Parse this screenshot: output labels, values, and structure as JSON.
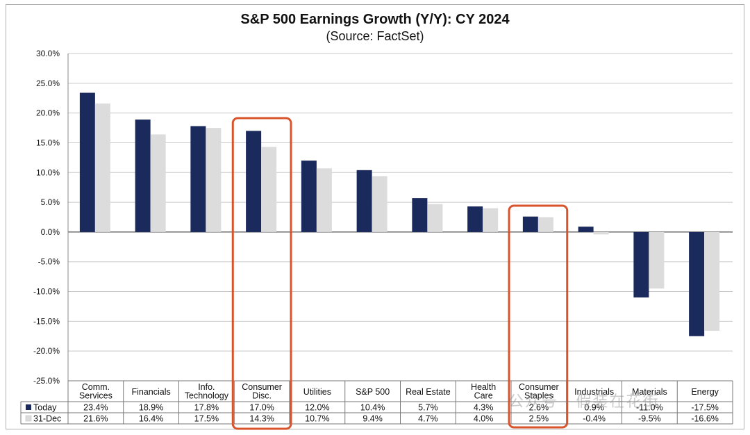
{
  "chart_data": {
    "type": "bar",
    "title": "S&P 500 Earnings Growth (Y/Y): CY 2024",
    "subtitle": "(Source: FactSet)",
    "categories": [
      [
        "Comm.",
        "Services"
      ],
      [
        "Financials"
      ],
      [
        "Info.",
        "Technology"
      ],
      [
        "Consumer",
        "Disc."
      ],
      [
        "Utilities"
      ],
      [
        "S&P 500"
      ],
      [
        "Real Estate"
      ],
      [
        "Health",
        "Care"
      ],
      [
        "Consumer",
        "Staples"
      ],
      [
        "Industrials"
      ],
      [
        "Materials"
      ],
      [
        "Energy"
      ]
    ],
    "series": [
      {
        "name": "Today",
        "color": "#1b2a5c",
        "values": [
          23.4,
          18.9,
          17.8,
          17.0,
          12.0,
          10.4,
          5.7,
          4.3,
          2.6,
          0.9,
          -11.0,
          -17.5
        ],
        "labels": [
          "23.4%",
          "18.9%",
          "17.8%",
          "17.0%",
          "12.0%",
          "10.4%",
          "5.7%",
          "4.3%",
          "2.6%",
          "0.9%",
          "-11.0%",
          "-17.5%"
        ]
      },
      {
        "name": "31-Dec",
        "color": "#dcdcdc",
        "values": [
          21.6,
          16.4,
          17.5,
          14.3,
          10.7,
          9.4,
          4.7,
          4.0,
          2.5,
          -0.4,
          -9.5,
          -16.6
        ],
        "labels": [
          "21.6%",
          "16.4%",
          "17.5%",
          "14.3%",
          "10.7%",
          "9.4%",
          "4.7%",
          "4.0%",
          "2.5%",
          "-0.4%",
          "-9.5%",
          "-16.6%"
        ]
      }
    ],
    "ylim": [
      -25,
      30
    ],
    "yticks": [
      30,
      25,
      20,
      15,
      10,
      5,
      0,
      -5,
      -10,
      -15,
      -20,
      -25
    ],
    "ytick_labels": [
      "30.0%",
      "25.0%",
      "20.0%",
      "15.0%",
      "10.0%",
      "5.0%",
      "0.0%",
      "-5.0%",
      "-10.0%",
      "-15.0%",
      "-20.0%",
      "-25.0%"
    ],
    "grid": true,
    "legend": "table-left",
    "highlight": {
      "categories": [
        "Consumer Disc.",
        "Consumer Staples"
      ],
      "color": "#d9532b"
    }
  },
  "watermark": "公众号 · 假装在花街"
}
